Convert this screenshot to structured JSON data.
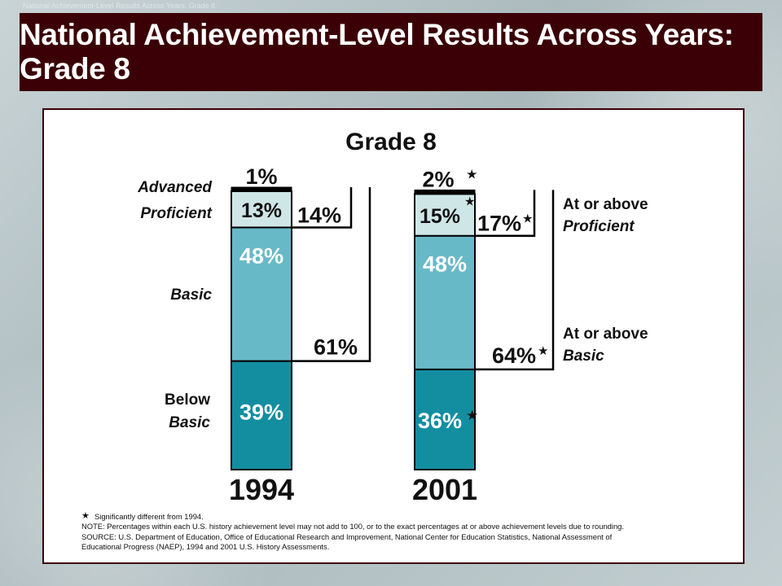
{
  "watermark": "National Achievement-Level Results Across Years: Grade 8",
  "banner": {
    "title": "National Achievement-Level Results Across Years: Grade 8"
  },
  "chart_data": {
    "type": "bar",
    "title": "Grade 8",
    "stacked": true,
    "levels": [
      "Advanced",
      "Proficient",
      "Basic",
      "Below Basic"
    ],
    "level_labels": {
      "advanced": "Advanced",
      "proficient": "Proficient",
      "basic": "Basic",
      "below_basic_1": "Below",
      "below_basic_2": "Basic"
    },
    "bracket_labels": {
      "proficient_1": "At or above",
      "proficient_2": "Proficient",
      "basic_1": "At or above",
      "basic_2": "Basic"
    },
    "colors": {
      "advanced": "#ffffff",
      "proficient": "#cfe6e6",
      "basic": "#68b9c8",
      "below_basic": "#138ea1",
      "outline": "#000000"
    },
    "years": [
      {
        "year": "1994",
        "values": {
          "advanced": 1,
          "proficient": 13,
          "basic": 48,
          "below_basic": 39
        },
        "labels": {
          "advanced": "1%",
          "proficient": "13%",
          "basic": "48%",
          "below_basic": "39%"
        },
        "at_or_above_proficient": 14,
        "at_or_above_proficient_label": "14%",
        "at_or_above_basic": 61,
        "at_or_above_basic_label": "61%",
        "significant": {
          "advanced": false,
          "proficient": false,
          "below_basic": false,
          "at_or_above_proficient": false,
          "at_or_above_basic": false
        }
      },
      {
        "year": "2001",
        "values": {
          "advanced": 2,
          "proficient": 15,
          "basic": 48,
          "below_basic": 36
        },
        "labels": {
          "advanced": "2%",
          "proficient": "15%",
          "basic": "48%",
          "below_basic": "36%"
        },
        "at_or_above_proficient": 17,
        "at_or_above_proficient_label": "17%",
        "at_or_above_basic": 64,
        "at_or_above_basic_label": "64%",
        "significant": {
          "advanced": true,
          "proficient": true,
          "below_basic": true,
          "at_or_above_proficient": true,
          "at_or_above_basic": true
        }
      }
    ]
  },
  "notes": {
    "star_symbol": "★",
    "star_note": "Significantly different from 1994.",
    "note": "NOTE: Percentages within each U.S. history achievement level may not add to 100, or to the exact percentages at or above achievement levels due to rounding.",
    "source_1": "SOURCE: U.S. Department of Education, Office of Educational Research and Improvement, National Center for Education Statistics, National Assessment of",
    "source_2": "Educational Progress (NAEP), 1994 and 2001 U.S. History Assessments."
  }
}
